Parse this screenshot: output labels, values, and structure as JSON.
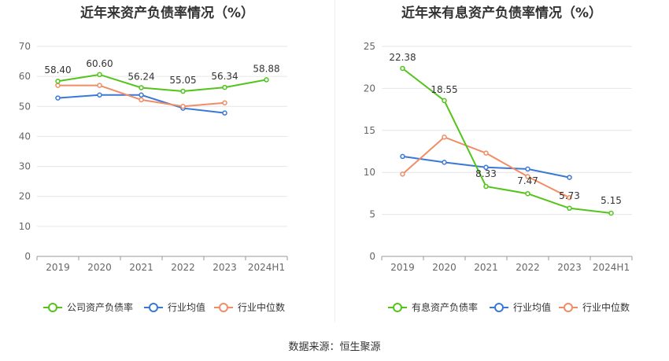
{
  "source_text": "数据来源：恒生聚源",
  "chart_data": [
    {
      "type": "line",
      "title": "近年来资产负债率情况（%）",
      "categories": [
        "2019",
        "2020",
        "2021",
        "2022",
        "2023",
        "2024H1"
      ],
      "ylim": [
        0,
        70
      ],
      "yticks": [
        0,
        10,
        20,
        30,
        40,
        50,
        60,
        70
      ],
      "series": [
        {
          "name": "公司资产负债率",
          "color": "#52c41a",
          "values": [
            58.4,
            60.6,
            56.24,
            55.05,
            56.34,
            58.88
          ],
          "labels": [
            "58.40",
            "60.60",
            "56.24",
            "55.05",
            "56.34",
            "58.88"
          ]
        },
        {
          "name": "行业均值",
          "color": "#3a78d8",
          "values": [
            52.8,
            53.8,
            53.8,
            49.4,
            47.8,
            null
          ]
        },
        {
          "name": "行业中位数",
          "color": "#f08c66",
          "values": [
            57.0,
            57.0,
            52.2,
            50.0,
            51.2,
            null
          ]
        }
      ]
    },
    {
      "type": "line",
      "title": "近年来有息资产负债率情况（%）",
      "categories": [
        "2019",
        "2020",
        "2021",
        "2022",
        "2023",
        "2024H1"
      ],
      "ylim": [
        0,
        25
      ],
      "yticks": [
        0,
        5,
        10,
        15,
        20,
        25
      ],
      "series": [
        {
          "name": "有息资产负债率",
          "color": "#52c41a",
          "values": [
            22.38,
            18.55,
            8.33,
            7.47,
            5.73,
            5.15
          ],
          "labels": [
            "22.38",
            "18.55",
            "8.33",
            "7.47",
            "5.73",
            "5.15"
          ]
        },
        {
          "name": "行业均值",
          "color": "#3a78d8",
          "values": [
            11.9,
            11.2,
            10.6,
            10.4,
            9.4,
            null
          ]
        },
        {
          "name": "行业中位数",
          "color": "#f08c66",
          "values": [
            9.8,
            14.2,
            12.3,
            9.5,
            7.0,
            null
          ]
        }
      ]
    }
  ]
}
